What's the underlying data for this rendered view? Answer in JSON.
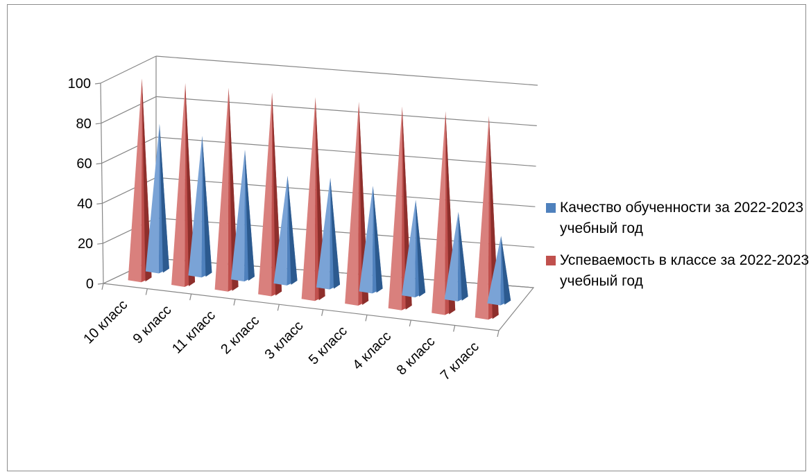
{
  "chart_data": {
    "type": "bar",
    "title": "",
    "xlabel": "",
    "ylabel": "",
    "ylim": [
      0,
      100
    ],
    "yticks": [
      0,
      20,
      40,
      60,
      80,
      100
    ],
    "categories": [
      "10 класс",
      "9 класс",
      "11 класс",
      "2 класс",
      "3 класс",
      "5 класс",
      "4 класс",
      "8 класс",
      "7 класс"
    ],
    "series": [
      {
        "name": "Качество обученности за 2022-2023 учебный год",
        "color": "#4f81bd",
        "values": [
          73,
          69,
          64,
          53,
          54,
          52,
          47,
          43,
          33
        ]
      },
      {
        "name": "Успеваемость в классе за 2022-2023 учебный год",
        "color": "#c0504d",
        "values": [
          100,
          100,
          100,
          100,
          100,
          100,
          100,
          100,
          100
        ]
      }
    ],
    "legend_position": "right",
    "grid": true,
    "shape": "cone-3d"
  }
}
